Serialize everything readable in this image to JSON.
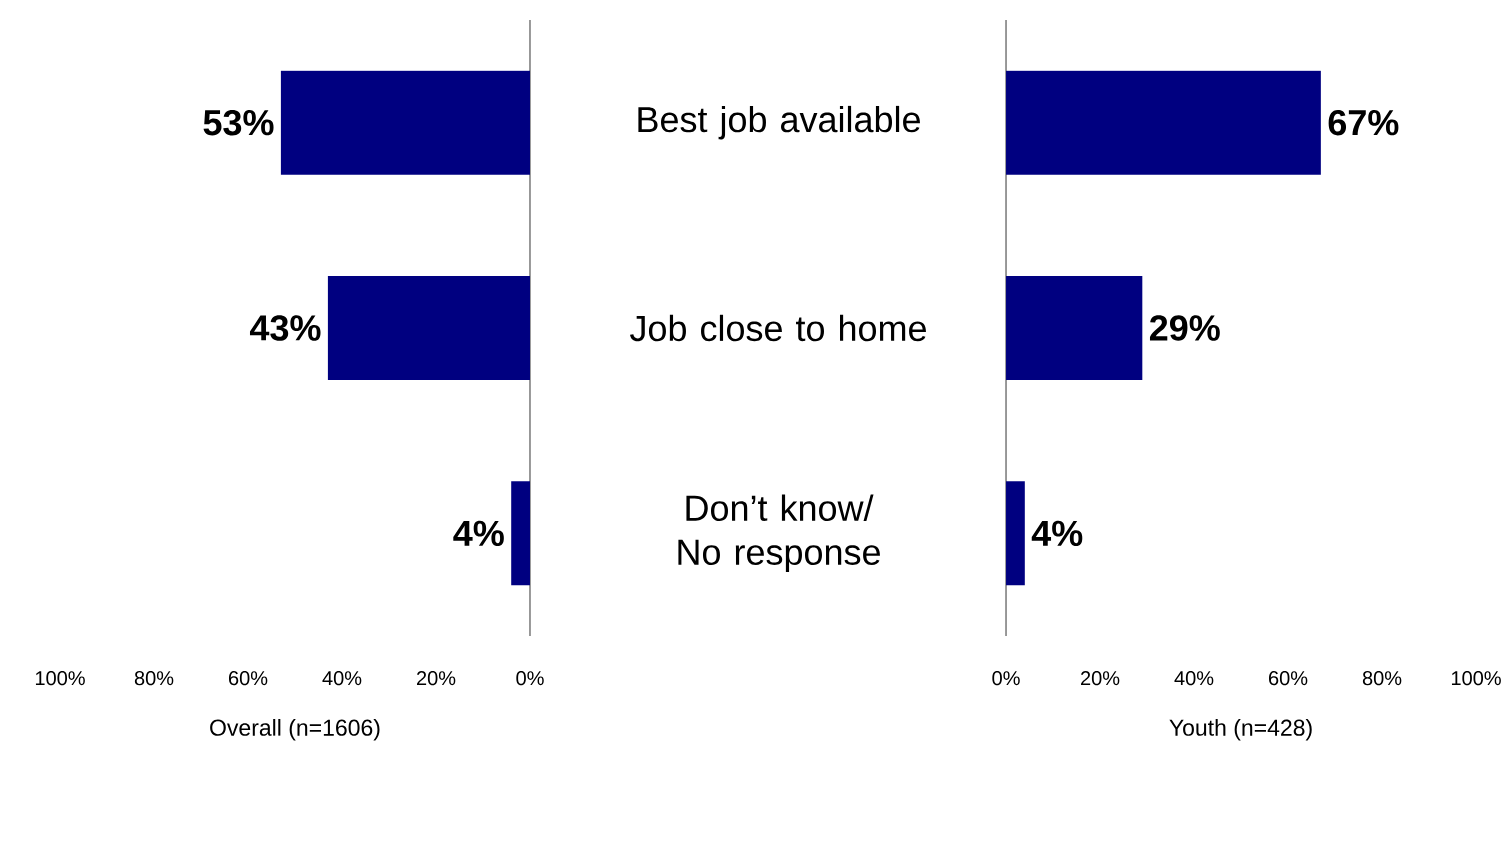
{
  "chart_data": [
    {
      "type": "bar",
      "orientation": "horizontal",
      "categories": [
        "Best job available",
        "Job close to home",
        "Don’t know/ No response"
      ],
      "values": [
        53,
        43,
        4
      ],
      "value_labels": [
        "53%",
        "43%",
        "4%"
      ],
      "color": "#000080",
      "xlabel": "Overall (n=1606)",
      "xlim": [
        100,
        0
      ],
      "xticks": [
        {
          "value": 100,
          "label": "100%"
        },
        {
          "value": 80,
          "label": "80%"
        },
        {
          "value": 60,
          "label": "60%"
        },
        {
          "value": 40,
          "label": "40%"
        },
        {
          "value": 20,
          "label": "20%"
        },
        {
          "value": 0,
          "label": "0%"
        }
      ]
    },
    {
      "type": "bar",
      "orientation": "horizontal",
      "values": [
        67,
        29,
        4
      ],
      "value_labels": [
        "67%",
        "29%",
        "4%"
      ],
      "color": "#000080",
      "xlabel": "Youth (n=428)",
      "xlim": [
        0,
        100
      ],
      "xticks": [
        {
          "value": 0,
          "label": "0%"
        },
        {
          "value": 20,
          "label": "20%"
        },
        {
          "value": 40,
          "label": "40%"
        },
        {
          "value": 60,
          "label": "60%"
        },
        {
          "value": 80,
          "label": "80%"
        },
        {
          "value": 100,
          "label": "100%"
        }
      ],
      "tick_labels": "x"
    }
  ]
}
